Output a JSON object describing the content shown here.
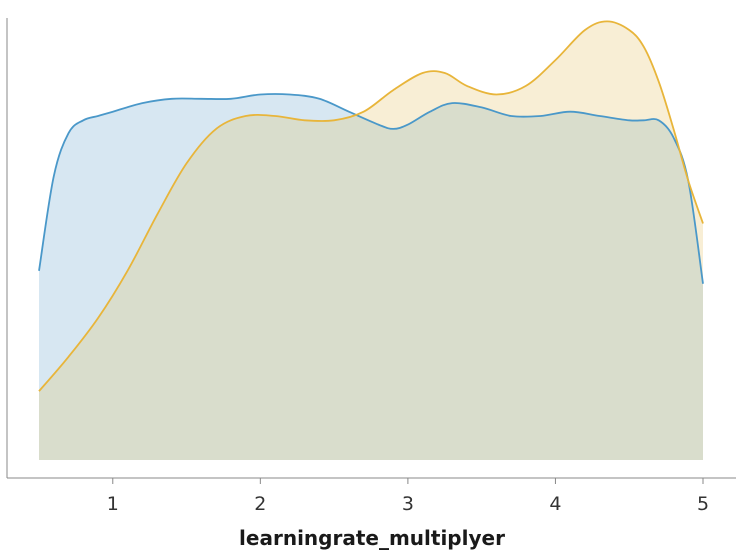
{
  "chart_data": {
    "type": "area",
    "title": "",
    "xlabel": "learningrate_multiplyer",
    "ylabel": "",
    "xlim": [
      0.5,
      5.0
    ],
    "ylim": [
      0,
      1
    ],
    "xticks": [
      1,
      2,
      3,
      4,
      5
    ],
    "tick_labels": [
      "1",
      "2",
      "3",
      "4",
      "5"
    ],
    "grid": false,
    "legend": "none",
    "y_ticks_shown": false,
    "series": [
      {
        "color": "#4a98c9",
        "fill": "#d7e7f2",
        "points": [
          [
            0.5,
            0.44
          ],
          [
            0.6,
            0.66
          ],
          [
            0.7,
            0.76
          ],
          [
            0.8,
            0.79
          ],
          [
            0.9,
            0.8
          ],
          [
            1.0,
            0.81
          ],
          [
            1.2,
            0.83
          ],
          [
            1.4,
            0.84
          ],
          [
            1.6,
            0.84
          ],
          [
            1.8,
            0.84
          ],
          [
            2.0,
            0.85
          ],
          [
            2.2,
            0.85
          ],
          [
            2.4,
            0.84
          ],
          [
            2.6,
            0.81
          ],
          [
            2.8,
            0.78
          ],
          [
            2.9,
            0.77
          ],
          [
            3.0,
            0.78
          ],
          [
            3.15,
            0.81
          ],
          [
            3.3,
            0.83
          ],
          [
            3.5,
            0.82
          ],
          [
            3.7,
            0.8
          ],
          [
            3.9,
            0.8
          ],
          [
            4.1,
            0.81
          ],
          [
            4.3,
            0.8
          ],
          [
            4.5,
            0.79
          ],
          [
            4.6,
            0.79
          ],
          [
            4.7,
            0.79
          ],
          [
            4.8,
            0.75
          ],
          [
            4.9,
            0.65
          ],
          [
            5.0,
            0.41
          ]
        ]
      },
      {
        "color": "#e8b53a",
        "fill": "#f8eed5",
        "points": [
          [
            0.5,
            0.16
          ],
          [
            0.7,
            0.24
          ],
          [
            0.9,
            0.33
          ],
          [
            1.1,
            0.44
          ],
          [
            1.3,
            0.57
          ],
          [
            1.5,
            0.69
          ],
          [
            1.7,
            0.77
          ],
          [
            1.9,
            0.8
          ],
          [
            2.1,
            0.8
          ],
          [
            2.3,
            0.79
          ],
          [
            2.5,
            0.79
          ],
          [
            2.7,
            0.81
          ],
          [
            2.9,
            0.86
          ],
          [
            3.1,
            0.9
          ],
          [
            3.25,
            0.9
          ],
          [
            3.4,
            0.87
          ],
          [
            3.6,
            0.85
          ],
          [
            3.8,
            0.87
          ],
          [
            4.0,
            0.93
          ],
          [
            4.2,
            1.0
          ],
          [
            4.35,
            1.02
          ],
          [
            4.5,
            1.0
          ],
          [
            4.6,
            0.96
          ],
          [
            4.7,
            0.88
          ],
          [
            4.8,
            0.77
          ],
          [
            4.9,
            0.65
          ],
          [
            5.0,
            0.55
          ]
        ]
      }
    ],
    "overlap_fill": "#d9ddcc"
  }
}
